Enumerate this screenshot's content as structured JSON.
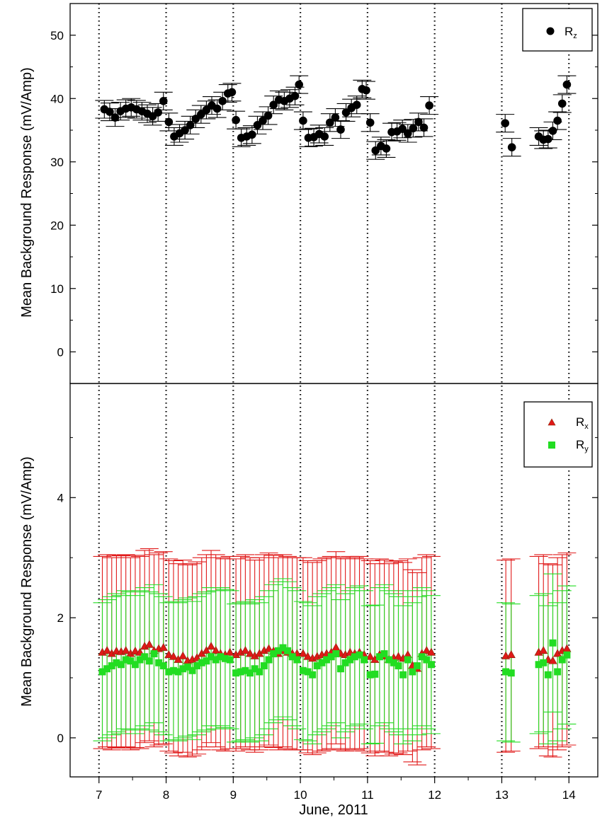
{
  "chart_data": [
    {
      "type": "scatter",
      "panel": "top",
      "ylabel": "Mean Background Response (mV/Amp)",
      "ylim": [
        -5,
        55
      ],
      "yticks": [
        0,
        10,
        20,
        30,
        40,
        50
      ],
      "ytick_labels": [
        "0",
        "10",
        "20",
        "30",
        "40",
        "50"
      ],
      "xlim": [
        6.57,
        14.43
      ],
      "day_separators": [
        7,
        8,
        9,
        10,
        11,
        12,
        13,
        14
      ],
      "legend": {
        "placement": "top-right",
        "entries": [
          {
            "main": "R",
            "sub": "z"
          }
        ]
      },
      "series": [
        {
          "name": "Rz",
          "color": "#000000",
          "marker": "circle",
          "error": 1.4,
          "x": [
            7.08,
            7.16,
            7.24,
            7.32,
            7.4,
            7.48,
            7.56,
            7.64,
            7.72,
            7.8,
            7.88,
            7.96,
            8.04,
            8.12,
            8.2,
            8.28,
            8.36,
            8.44,
            8.52,
            8.6,
            8.68,
            8.76,
            8.84,
            8.92,
            8.98,
            9.04,
            9.12,
            9.2,
            9.28,
            9.36,
            9.44,
            9.52,
            9.6,
            9.68,
            9.76,
            9.84,
            9.92,
            9.98,
            10.04,
            10.12,
            10.2,
            10.28,
            10.36,
            10.44,
            10.52,
            10.6,
            10.68,
            10.76,
            10.84,
            10.92,
            10.98,
            11.04,
            11.12,
            11.2,
            11.28,
            11.36,
            11.44,
            11.52,
            11.6,
            11.68,
            11.76,
            11.84,
            11.92,
            13.05,
            13.15,
            13.55,
            13.62,
            13.69,
            13.76,
            13.83,
            13.9,
            13.97
          ],
          "y": [
            38.3,
            37.9,
            37.0,
            38.0,
            38.4,
            38.6,
            38.3,
            38.0,
            37.6,
            37.2,
            37.8,
            39.6,
            36.3,
            34.0,
            34.5,
            35.0,
            35.8,
            36.8,
            37.5,
            38.2,
            38.9,
            38.4,
            39.6,
            40.8,
            41.0,
            36.6,
            33.8,
            34.0,
            34.3,
            35.8,
            36.5,
            37.3,
            39.0,
            39.8,
            39.6,
            40.0,
            40.4,
            42.2,
            36.5,
            33.8,
            33.9,
            34.4,
            34.0,
            36.2,
            37.0,
            35.1,
            37.8,
            38.5,
            39.0,
            41.5,
            41.3,
            36.2,
            31.8,
            32.5,
            32.1,
            34.7,
            34.8,
            35.2,
            34.5,
            35.3,
            36.3,
            35.4,
            38.9,
            36.1,
            32.3,
            34.0,
            33.5,
            33.6,
            34.9,
            36.5,
            39.2,
            42.2
          ]
        }
      ]
    },
    {
      "type": "scatter",
      "panel": "bottom",
      "title": "",
      "xlabel": "June, 2011",
      "ylabel": "Mean Background Response (mV/Amp)",
      "ylim": [
        -0.65,
        5.9
      ],
      "yticks": [
        0,
        2,
        4
      ],
      "ytick_labels": [
        "0",
        "2",
        "4"
      ],
      "xlim": [
        6.57,
        14.43
      ],
      "xticks": [
        7,
        8,
        9,
        10,
        11,
        12,
        13,
        14
      ],
      "xtick_labels": [
        "7",
        "8",
        "9",
        "10",
        "11",
        "12",
        "13",
        "14"
      ],
      "day_separators": [
        7,
        8,
        9,
        10,
        11,
        12,
        13,
        14
      ],
      "legend": {
        "placement": "top-right",
        "entries": [
          {
            "main": "R",
            "sub": "x"
          },
          {
            "main": "R",
            "sub": "y"
          }
        ]
      },
      "series": [
        {
          "name": "Rx",
          "color": "#e01818",
          "marker": "triangle",
          "error": 1.6,
          "x": [
            7.05,
            7.12,
            7.19,
            7.26,
            7.33,
            7.4,
            7.47,
            7.54,
            7.61,
            7.68,
            7.75,
            7.82,
            7.89,
            7.96,
            8.04,
            8.11,
            8.18,
            8.25,
            8.32,
            8.39,
            8.46,
            8.53,
            8.6,
            8.67,
            8.74,
            8.81,
            8.88,
            8.95,
            9.04,
            9.11,
            9.18,
            9.25,
            9.32,
            9.39,
            9.46,
            9.53,
            9.6,
            9.67,
            9.74,
            9.81,
            9.88,
            9.95,
            10.04,
            10.11,
            10.18,
            10.25,
            10.32,
            10.39,
            10.46,
            10.53,
            10.6,
            10.67,
            10.74,
            10.81,
            10.88,
            10.95,
            11.04,
            11.11,
            11.18,
            11.25,
            11.32,
            11.39,
            11.46,
            11.53,
            11.6,
            11.67,
            11.74,
            11.81,
            11.88,
            11.95,
            13.06,
            13.14,
            13.55,
            13.62,
            13.69,
            13.76,
            13.83,
            13.9,
            13.97
          ],
          "y": [
            1.42,
            1.45,
            1.4,
            1.44,
            1.43,
            1.45,
            1.4,
            1.44,
            1.42,
            1.52,
            1.55,
            1.45,
            1.48,
            1.5,
            1.38,
            1.35,
            1.3,
            1.36,
            1.28,
            1.3,
            1.33,
            1.4,
            1.45,
            1.52,
            1.45,
            1.4,
            1.38,
            1.42,
            1.38,
            1.42,
            1.45,
            1.4,
            1.36,
            1.4,
            1.45,
            1.48,
            1.44,
            1.4,
            1.45,
            1.42,
            1.4,
            1.4,
            1.4,
            1.35,
            1.32,
            1.35,
            1.38,
            1.4,
            1.42,
            1.5,
            1.4,
            1.38,
            1.42,
            1.4,
            1.42,
            1.38,
            1.35,
            1.3,
            1.38,
            1.36,
            1.3,
            1.33,
            1.35,
            1.32,
            1.38,
            1.2,
            1.15,
            1.4,
            1.45,
            1.42,
            1.36,
            1.38,
            1.42,
            1.45,
            1.3,
            1.28,
            1.4,
            1.45,
            1.48
          ]
        },
        {
          "name": "Ry",
          "color": "#22dd22",
          "marker": "square",
          "error": 1.15,
          "x": [
            7.05,
            7.12,
            7.19,
            7.26,
            7.33,
            7.4,
            7.47,
            7.54,
            7.61,
            7.68,
            7.75,
            7.82,
            7.89,
            7.96,
            8.04,
            8.11,
            8.18,
            8.25,
            8.32,
            8.39,
            8.46,
            8.53,
            8.6,
            8.67,
            8.74,
            8.81,
            8.88,
            8.95,
            9.04,
            9.11,
            9.18,
            9.25,
            9.32,
            9.39,
            9.46,
            9.53,
            9.6,
            9.67,
            9.74,
            9.81,
            9.88,
            9.95,
            10.04,
            10.11,
            10.18,
            10.25,
            10.32,
            10.39,
            10.46,
            10.53,
            10.6,
            10.67,
            10.74,
            10.81,
            10.88,
            10.95,
            11.04,
            11.11,
            11.18,
            11.25,
            11.32,
            11.39,
            11.46,
            11.53,
            11.6,
            11.67,
            11.74,
            11.81,
            11.88,
            11.95,
            13.06,
            13.14,
            13.55,
            13.62,
            13.69,
            13.76,
            13.83,
            13.9,
            13.97
          ],
          "y": [
            1.1,
            1.15,
            1.2,
            1.25,
            1.22,
            1.3,
            1.28,
            1.22,
            1.3,
            1.35,
            1.28,
            1.4,
            1.25,
            1.2,
            1.1,
            1.12,
            1.1,
            1.15,
            1.18,
            1.12,
            1.2,
            1.25,
            1.28,
            1.35,
            1.3,
            1.35,
            1.32,
            1.3,
            1.08,
            1.1,
            1.12,
            1.08,
            1.15,
            1.1,
            1.2,
            1.3,
            1.4,
            1.45,
            1.5,
            1.45,
            1.35,
            1.3,
            1.12,
            1.1,
            1.05,
            1.2,
            1.25,
            1.3,
            1.35,
            1.4,
            1.15,
            1.25,
            1.3,
            1.35,
            1.38,
            1.3,
            1.05,
            1.06,
            1.35,
            1.4,
            1.3,
            1.25,
            1.2,
            1.05,
            1.3,
            1.1,
            1.2,
            1.35,
            1.3,
            1.22,
            1.1,
            1.08,
            1.22,
            1.25,
            1.05,
            1.58,
            1.1,
            1.3,
            1.38
          ]
        }
      ]
    }
  ]
}
